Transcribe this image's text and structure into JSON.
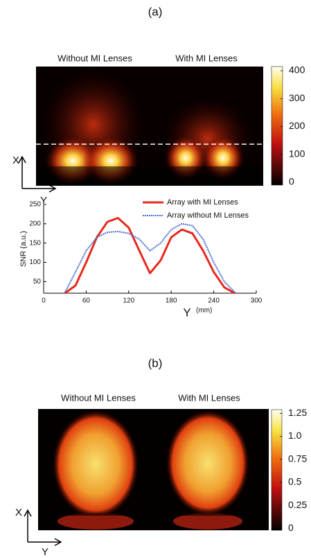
{
  "panel_a": {
    "label": "(a)",
    "image_titles": [
      "Without MI Lenses",
      "With MI Lenses"
    ],
    "x_axis": "X",
    "y_axis": "Y",
    "colorbar": {
      "ylim": [
        -10,
        415
      ],
      "yticks": [
        0,
        100,
        200,
        300,
        400
      ]
    }
  },
  "chart_data": {
    "type": "line",
    "ylabel": "SNR (a.u.)",
    "xlabel": "Y",
    "xunit": "(mm)",
    "x": [
      30,
      45,
      60,
      75,
      90,
      105,
      120,
      135,
      150,
      165,
      180,
      195,
      210,
      225,
      240,
      255,
      270
    ],
    "series": [
      {
        "name": "Array with MI Lenses",
        "color": "#e8281c",
        "values": [
          20,
          40,
          100,
          165,
          205,
          215,
          190,
          130,
          72,
          105,
          165,
          185,
          175,
          130,
          75,
          35,
          20
        ]
      },
      {
        "name": "Array without MI Lenses",
        "color": "#4a6fd0",
        "values": [
          22,
          75,
          130,
          165,
          178,
          180,
          175,
          160,
          130,
          150,
          185,
          200,
          195,
          160,
          100,
          50,
          22
        ]
      }
    ],
    "xlim": [
      0,
      300
    ],
    "xticks": [
      0,
      60,
      120,
      180,
      240,
      300
    ],
    "ylim": [
      20,
      250
    ],
    "yticks": [
      50,
      100,
      150,
      200,
      250
    ]
  },
  "panel_b": {
    "label": "(b)",
    "image_titles": [
      "Without MI Lenses",
      "With MI Lenses"
    ],
    "x_axis": "X",
    "y_axis": "Y",
    "colorbar": {
      "ylim": [
        -0.02,
        1.29
      ],
      "yticks": [
        0,
        0.25,
        0.5,
        0.75,
        {
          "value": 1,
          "label": "1.0"
        },
        1.25
      ]
    }
  }
}
